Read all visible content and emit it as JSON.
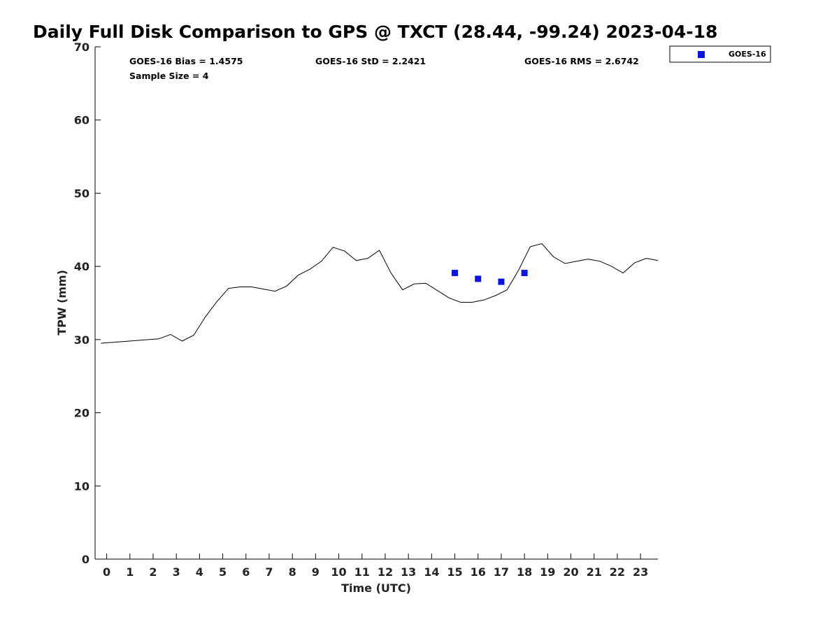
{
  "chart_data": {
    "type": "line",
    "title": "Daily Full Disk Comparison to GPS @ TXCT (28.44, -99.24) 2023-04-18",
    "xlabel": "Time (UTC)",
    "ylabel": "TPW (mm)",
    "xlim": [
      -0.5,
      23.75
    ],
    "ylim": [
      0,
      70
    ],
    "x_ticks": [
      "0",
      "1",
      "2",
      "3",
      "4",
      "5",
      "6",
      "7",
      "8",
      "9",
      "10",
      "11",
      "12",
      "13",
      "14",
      "15",
      "16",
      "17",
      "18",
      "19",
      "20",
      "21",
      "22",
      "23"
    ],
    "y_ticks": [
      "0",
      "10",
      "20",
      "30",
      "40",
      "50",
      "60",
      "70"
    ],
    "grid": false,
    "legend": {
      "position": "top-right",
      "entries": [
        "GOES-16"
      ]
    },
    "stats": {
      "bias": "GOES-16 Bias = 1.4575",
      "std": "GOES-16 StD = 2.2421",
      "rms": "GOES-16 RMS = 2.6742",
      "sample": "Sample Size = 4"
    },
    "series": [
      {
        "style": "line",
        "color": "#000000",
        "x": [
          -0.25,
          2.25,
          2.75,
          3.25,
          3.75,
          4.25,
          4.75,
          5.25,
          5.75,
          6.25,
          6.75,
          7.25,
          7.75,
          8.25,
          8.75,
          9.25,
          9.75,
          10.25,
          10.75,
          11.25,
          11.75,
          12.25,
          12.75,
          13.25,
          13.75,
          14.25,
          14.75,
          15.25,
          15.75,
          16.25,
          16.75,
          17.25,
          17.75,
          18.25,
          18.75,
          19.25,
          19.75,
          20.25,
          20.75,
          21.25,
          21.75,
          22.25,
          22.75,
          23.25,
          23.75
        ],
        "y": [
          29.5,
          30.1,
          30.7,
          29.8,
          30.6,
          33.1,
          35.2,
          37.0,
          37.2,
          37.2,
          36.9,
          36.6,
          37.3,
          38.8,
          39.6,
          40.7,
          42.6,
          42.1,
          40.8,
          41.1,
          42.2,
          39.1,
          36.8,
          37.6,
          37.7,
          36.7,
          35.7,
          35.1,
          35.1,
          35.4,
          36.0,
          36.8,
          39.5,
          42.7,
          43.1,
          41.3,
          40.4,
          40.7,
          41.0,
          40.7,
          40.0,
          39.1,
          40.5,
          41.1,
          40.8
        ]
      },
      {
        "name": "GOES-16",
        "style": "markers",
        "color": "#0a14e6",
        "x": [
          15,
          16,
          17,
          18
        ],
        "y": [
          39.1,
          38.3,
          37.9,
          39.1
        ]
      }
    ]
  }
}
